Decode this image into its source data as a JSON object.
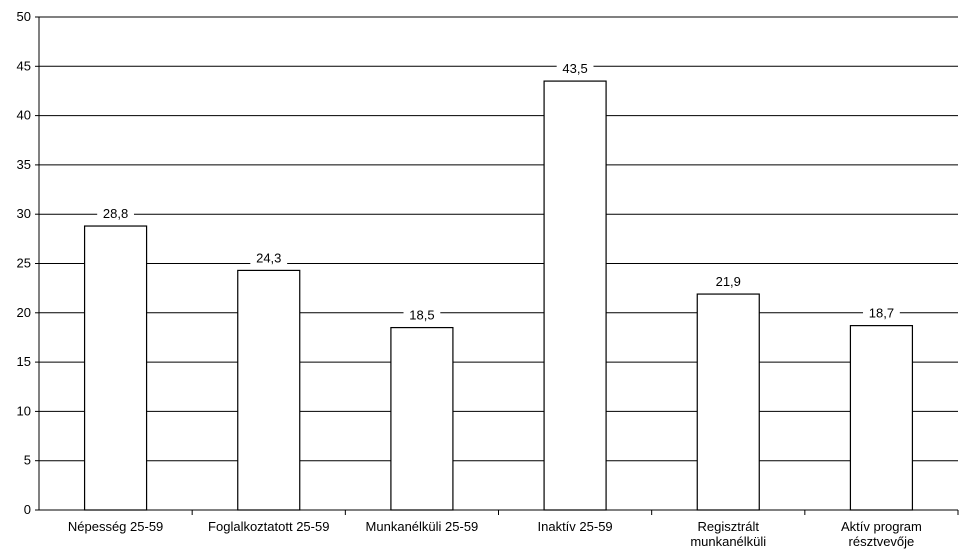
{
  "chart_data": {
    "type": "bar",
    "categories": [
      [
        "Népesség 25-59"
      ],
      [
        "Foglalkoztatott 25-59"
      ],
      [
        "Munkanélküli 25-59"
      ],
      [
        "Inaktív 25-59"
      ],
      [
        "Regisztrált",
        "munkanélküli"
      ],
      [
        "Aktív program",
        "résztvevője"
      ]
    ],
    "values": [
      28.8,
      24.3,
      18.5,
      43.5,
      21.9,
      18.7
    ],
    "value_labels": [
      "28,8",
      "24,3",
      "18,5",
      "43,5",
      "21,9",
      "18,7"
    ],
    "ylim": [
      0,
      50
    ],
    "yticks": [
      0,
      5,
      10,
      15,
      20,
      25,
      30,
      35,
      40,
      45,
      50
    ],
    "grid": true,
    "colors": {
      "bar_fill": "#ffffff",
      "bar_stroke": "#000000",
      "grid": "#000000"
    }
  }
}
